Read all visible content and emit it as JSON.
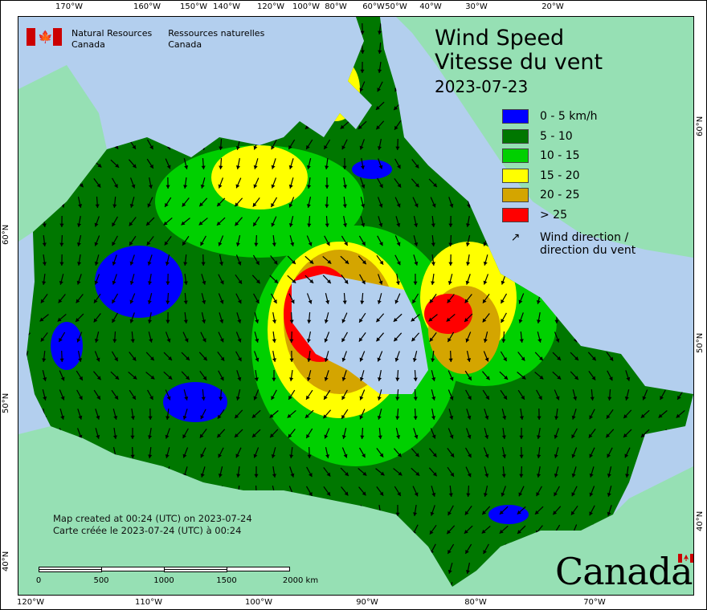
{
  "header": {
    "org_en": [
      "Natural Resources",
      "Canada"
    ],
    "org_fr": [
      "Ressources naturelles",
      "Canada"
    ],
    "title_en": "Wind Speed",
    "title_fr": "Vitesse du vent",
    "date": "2023-07-23"
  },
  "legend": {
    "items": [
      {
        "label": "0 - 5 km/h",
        "color": "#0000ff"
      },
      {
        "label": "5 - 10",
        "color": "#007700"
      },
      {
        "label": "10 - 15",
        "color": "#00d000"
      },
      {
        "label": "15 - 20",
        "color": "#ffff00"
      },
      {
        "label": "20 - 25",
        "color": "#d4a500"
      },
      {
        "label": "> 25",
        "color": "#ff0000"
      }
    ],
    "arrow_label": [
      "Wind direction /",
      "direction du vent"
    ]
  },
  "footer": {
    "created_en": "Map created at 00:24 (UTC) on 2023-07-24",
    "created_fr": "Carte créée le 2023-07-24 (UTC) à 00:24",
    "scale_labels": [
      "0",
      "500",
      "1000",
      "1500",
      "2000  km"
    ],
    "wordmark": "Canada"
  },
  "graticule": {
    "top": [
      "170°W",
      "160°W",
      "150°W",
      "140°W",
      "120°W",
      "100°W",
      "80°W",
      "60°W",
      "50°W",
      "40°W",
      "30°W",
      "20°W"
    ],
    "bottom": [
      "120°W",
      "110°W",
      "100°W",
      "90°W",
      "80°W",
      "70°W"
    ],
    "left": [
      "60°N",
      "50°N",
      "40°N"
    ],
    "right": [
      "60°N",
      "50°N",
      "40°N"
    ]
  },
  "colors": {
    "ocean": "#b3cfee",
    "land": "#96e0b4"
  }
}
